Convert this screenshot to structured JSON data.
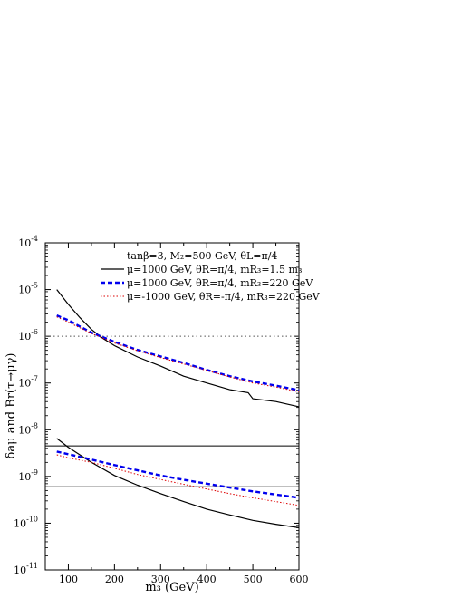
{
  "chart_data": {
    "type": "line",
    "xlabel": "m₃ (GeV)",
    "ylabel": "δaμ and Br(τ→μγ)",
    "xlim": [
      50,
      600
    ],
    "ylim": [
      1e-11,
      0.0001
    ],
    "yscale": "log",
    "xticks": [
      100,
      200,
      300,
      400,
      500,
      600
    ],
    "yticks": [
      {
        "value": 1e-11,
        "label": "10",
        "exp": "-11"
      },
      {
        "value": 1e-10,
        "label": "10",
        "exp": "-10"
      },
      {
        "value": 1e-09,
        "label": "10",
        "exp": "-9"
      },
      {
        "value": 1e-08,
        "label": "10",
        "exp": "-8"
      },
      {
        "value": 1e-07,
        "label": "10",
        "exp": "-7"
      },
      {
        "value": 1e-06,
        "label": "10",
        "exp": "-6"
      },
      {
        "value": 1e-05,
        "label": "10",
        "exp": "-5"
      },
      {
        "value": 0.0001,
        "label": "10",
        "exp": "-4"
      }
    ],
    "legend": {
      "header": "tanβ=3, M₂=500 GeV, θL=π/4",
      "entries": [
        "μ=1000 GeV, θR=π/4, mR₃=1.5 m₃",
        "μ=1000 GeV, θR=π/4, mR₃=220 GeV",
        "μ=-1000 GeV, θR=-π/4, mR₃=220 GeV"
      ]
    },
    "reference_lines": [
      {
        "y": 1e-06,
        "style": "dotted",
        "color": "#555555"
      },
      {
        "y": 4.5e-09,
        "style": "solid",
        "color": "#000000"
      },
      {
        "y": 6e-10,
        "style": "solid",
        "color": "#000000"
      }
    ],
    "series": [
      {
        "color": "#000000",
        "style": "solid",
        "x": [
          75,
          100,
          125,
          150,
          175,
          200,
          250,
          300,
          350,
          400,
          450,
          490,
          500,
          550,
          600
        ],
        "y": [
          1e-05,
          4.8e-06,
          2.5e-06,
          1.4e-06,
          9e-07,
          6.3e-07,
          3.6e-07,
          2.3e-07,
          1.4e-07,
          1e-07,
          7.2e-08,
          6.2e-08,
          4.6e-08,
          4e-08,
          3.1e-08
        ]
      },
      {
        "color": "#0000ee",
        "style": "dashed",
        "x": [
          75,
          100,
          150,
          200,
          250,
          300,
          350,
          400,
          450,
          500,
          550,
          600
        ],
        "y": [
          2.8e-06,
          2.2e-06,
          1.2e-06,
          7.6e-07,
          5.1e-07,
          3.7e-07,
          2.7e-07,
          1.9e-07,
          1.4e-07,
          1.08e-07,
          8.8e-08,
          7e-08
        ]
      },
      {
        "color": "#dd0000",
        "style": "dotted",
        "x": [
          75,
          100,
          150,
          200,
          250,
          300,
          350,
          400,
          450,
          500,
          550,
          600
        ],
        "y": [
          2.6e-06,
          2e-06,
          1.15e-06,
          7.2e-07,
          4.9e-07,
          3.5e-07,
          2.55e-07,
          1.85e-07,
          1.35e-07,
          1e-07,
          8.2e-08,
          6.5e-08
        ]
      },
      {
        "color": "#000000",
        "style": "solid",
        "x": [
          75,
          100,
          150,
          200,
          250,
          300,
          350,
          400,
          450,
          500,
          550,
          600
        ],
        "y": [
          6.5e-09,
          4.2e-09,
          2e-09,
          1.05e-09,
          6.5e-10,
          4.3e-10,
          2.9e-10,
          2e-10,
          1.5e-10,
          1.15e-10,
          9.5e-11,
          8e-11
        ]
      },
      {
        "color": "#0000ee",
        "style": "dashed",
        "x": [
          75,
          100,
          150,
          200,
          250,
          300,
          350,
          400,
          450,
          500,
          550,
          600
        ],
        "y": [
          3.4e-09,
          3e-09,
          2.3e-09,
          1.75e-09,
          1.35e-09,
          1.05e-09,
          8.5e-10,
          7e-10,
          5.8e-10,
          4.8e-10,
          4.1e-10,
          3.5e-10
        ]
      },
      {
        "color": "#dd0000",
        "style": "dotted",
        "x": [
          75,
          100,
          150,
          200,
          250,
          300,
          350,
          400,
          450,
          500,
          550,
          600
        ],
        "y": [
          2.9e-09,
          2.5e-09,
          2e-09,
          1.5e-09,
          1.1e-09,
          8.6e-10,
          6.8e-10,
          5.4e-10,
          4.3e-10,
          3.5e-10,
          2.9e-10,
          2.4e-10
        ]
      }
    ]
  }
}
